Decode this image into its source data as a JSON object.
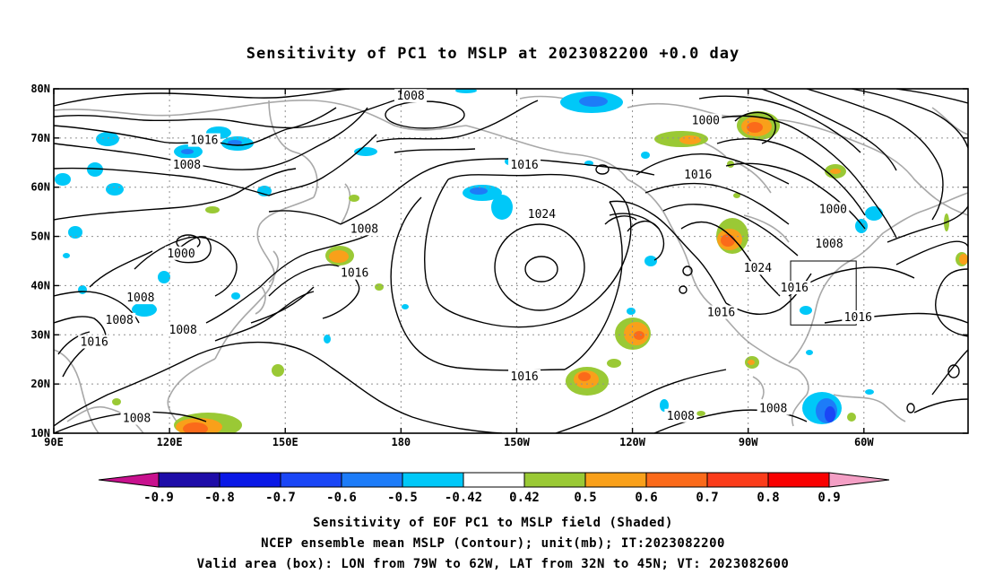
{
  "title": "Sensitivity of PC1 to MSLP at 2023082200 +0.0 day",
  "map": {
    "lat_ticks": [
      {
        "value": 80,
        "label": "80N"
      },
      {
        "value": 70,
        "label": "70N"
      },
      {
        "value": 60,
        "label": "60N"
      },
      {
        "value": 50,
        "label": "50N"
      },
      {
        "value": 40,
        "label": "40N"
      },
      {
        "value": 30,
        "label": "30N"
      },
      {
        "value": 20,
        "label": "20N"
      },
      {
        "value": 10,
        "label": "10N"
      }
    ],
    "lon_ticks": [
      {
        "value": 90,
        "label": "90E"
      },
      {
        "value": 120,
        "label": "120E"
      },
      {
        "value": 150,
        "label": "150E"
      },
      {
        "value": 180,
        "label": "180"
      },
      {
        "value": 210,
        "label": "150W"
      },
      {
        "value": 240,
        "label": "120W"
      },
      {
        "value": 270,
        "label": "90W"
      },
      {
        "value": 300,
        "label": "60W"
      }
    ],
    "lon_range": [
      90,
      327
    ],
    "lat_range": [
      10,
      80
    ],
    "valid_box": {
      "lon": [
        281,
        298
      ],
      "lat": [
        32,
        45
      ]
    },
    "contour_labels": [
      {
        "text": "1008",
        "lon": 182.5,
        "lat": 78.5
      },
      {
        "text": "1016",
        "lon": 129,
        "lat": 69.5
      },
      {
        "text": "1008",
        "lon": 124.5,
        "lat": 64.5
      },
      {
        "text": "1016",
        "lon": 212,
        "lat": 64.5
      },
      {
        "text": "1000",
        "lon": 259,
        "lat": 73.5
      },
      {
        "text": "1016",
        "lon": 257,
        "lat": 62.5
      },
      {
        "text": "1000",
        "lon": 292,
        "lat": 55.5
      },
      {
        "text": "1008",
        "lon": 291,
        "lat": 48.5
      },
      {
        "text": "1024",
        "lon": 216.5,
        "lat": 54.5
      },
      {
        "text": "1008",
        "lon": 170.5,
        "lat": 51.5
      },
      {
        "text": "1000",
        "lon": 123,
        "lat": 46.5
      },
      {
        "text": "1016",
        "lon": 168,
        "lat": 42.5
      },
      {
        "text": "1024",
        "lon": 272.5,
        "lat": 43.5
      },
      {
        "text": "1016",
        "lon": 282,
        "lat": 39.5
      },
      {
        "text": "1016",
        "lon": 263,
        "lat": 34.5
      },
      {
        "text": "1016",
        "lon": 298.5,
        "lat": 33.5
      },
      {
        "text": "1008",
        "lon": 112.5,
        "lat": 37.5
      },
      {
        "text": "1008",
        "lon": 107,
        "lat": 33
      },
      {
        "text": "1008",
        "lon": 123.5,
        "lat": 31
      },
      {
        "text": "1016",
        "lon": 100.5,
        "lat": 28.5
      },
      {
        "text": "1016",
        "lon": 212,
        "lat": 21.5
      },
      {
        "text": "1008",
        "lon": 111.5,
        "lat": 13
      },
      {
        "text": "1008",
        "lon": 252.5,
        "lat": 13.5
      },
      {
        "text": "1008",
        "lon": 276.5,
        "lat": 15
      }
    ]
  },
  "colorbar": {
    "colors": [
      "#c8118e",
      "#1e0ca8",
      "#0a18e6",
      "#1a46f6",
      "#1d7cf8",
      "#00c8f8",
      "#ffffff",
      "#9ac935",
      "#f9a01a",
      "#fb6a1a",
      "#fb3c1a",
      "#f80000",
      "#f49fc5"
    ],
    "labels": [
      "-0.9",
      "-0.8",
      "-0.7",
      "-0.6",
      "-0.5",
      "-0.42",
      "0.42",
      "0.5",
      "0.6",
      "0.7",
      "0.8",
      "0.9"
    ]
  },
  "captions": {
    "line1": "Sensitivity of EOF PC1 to MSLP field (Shaded)",
    "line2": "NCEP ensemble mean MSLP (Contour); unit(mb); IT:2023082200",
    "line3": "Valid area (box): LON from 79W to 62W, LAT from 32N to 45N; VT: 2023082600"
  }
}
